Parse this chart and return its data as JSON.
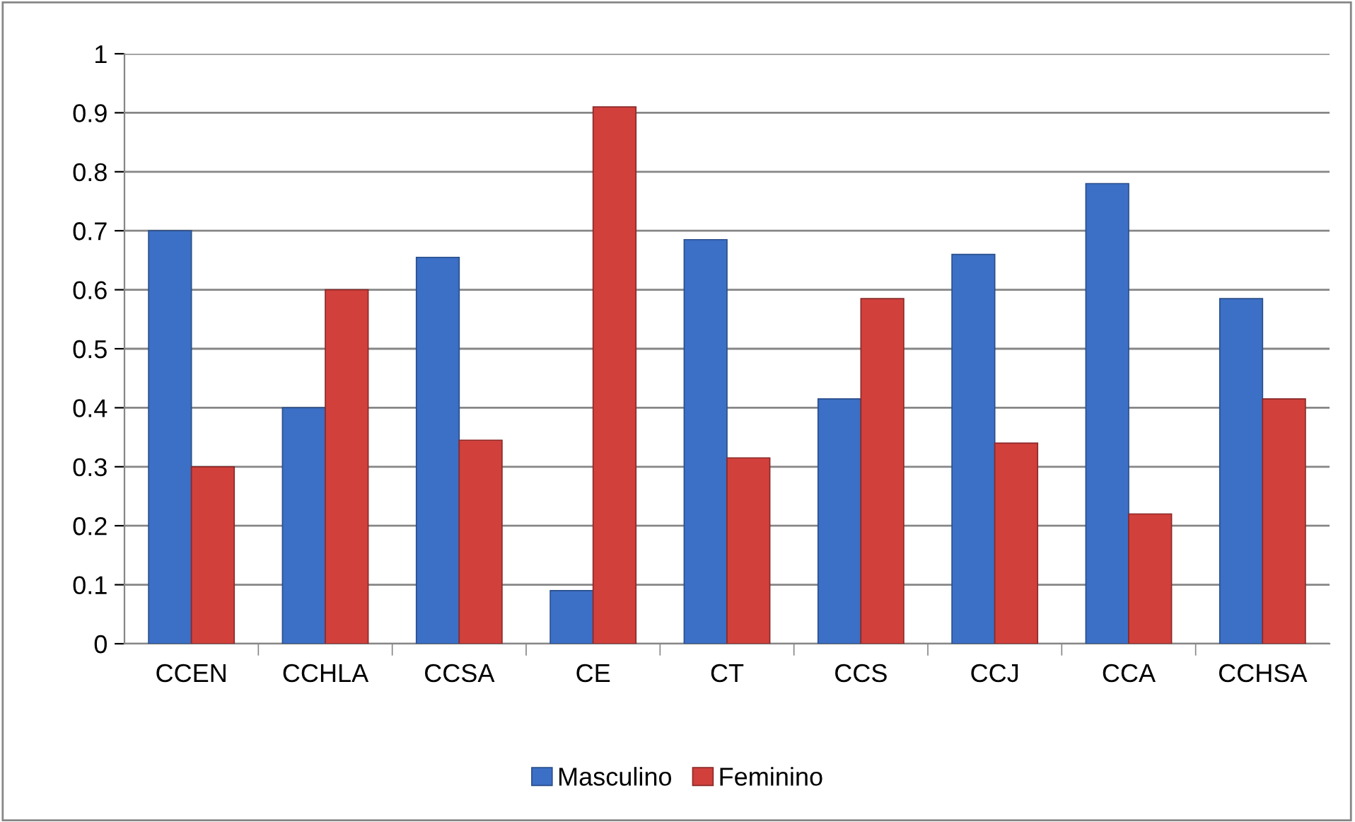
{
  "chart_data": {
    "type": "bar",
    "categories": [
      "CCEN",
      "CCHLA",
      "CCSA",
      "CE",
      "CT",
      "CCS",
      "CCJ",
      "CCA",
      "CCHSA"
    ],
    "series": [
      {
        "name": "Masculino",
        "color": "#3c6fc6",
        "values": [
          0.7,
          0.4,
          0.655,
          0.09,
          0.685,
          0.415,
          0.66,
          0.78,
          0.585
        ]
      },
      {
        "name": "Feminino",
        "color": "#d2403c",
        "values": [
          0.3,
          0.6,
          0.345,
          0.91,
          0.315,
          0.585,
          0.34,
          0.22,
          0.415
        ]
      }
    ],
    "ylim": [
      0,
      1
    ],
    "yticks": [
      0,
      0.1,
      0.2,
      0.3,
      0.4,
      0.5,
      0.6,
      0.7,
      0.8,
      0.9,
      1
    ],
    "grid": "y",
    "legend": "bottom"
  }
}
